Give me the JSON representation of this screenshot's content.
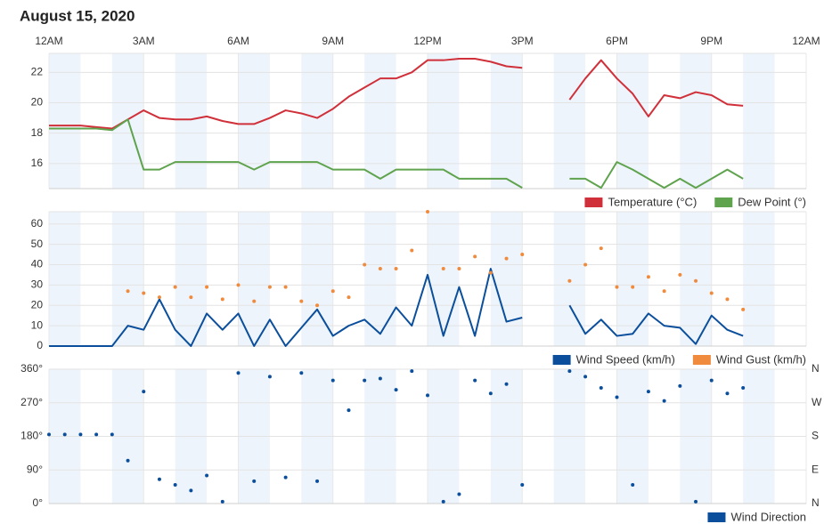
{
  "title": "August 15, 2020",
  "chart_data": [
    {
      "type": "line",
      "xlim": [
        0,
        24
      ],
      "xticks": [
        {
          "value": 0,
          "label": "12AM"
        },
        {
          "value": 3,
          "label": "3AM"
        },
        {
          "value": 6,
          "label": "6AM"
        },
        {
          "value": 9,
          "label": "9AM"
        },
        {
          "value": 12,
          "label": "12PM"
        },
        {
          "value": 15,
          "label": "3PM"
        },
        {
          "value": 18,
          "label": "6PM"
        },
        {
          "value": 21,
          "label": "9PM"
        },
        {
          "value": 24,
          "label": "12AM"
        }
      ],
      "ylim": [
        14.35,
        23.25
      ],
      "yticks": [
        16,
        18,
        20,
        22
      ],
      "grid": true,
      "x": [
        0,
        0.5,
        1,
        1.5,
        2,
        2.5,
        3,
        3.5,
        4,
        4.5,
        5,
        5.5,
        6,
        6.5,
        7,
        7.5,
        8,
        8.5,
        9,
        9.5,
        10,
        10.5,
        11,
        11.5,
        12,
        12.5,
        13,
        13.5,
        14,
        14.5,
        15,
        15.75,
        16.5,
        17,
        17.5,
        18,
        18.5,
        19,
        19.5,
        20,
        20.5,
        21,
        21.5,
        22
      ],
      "series": [
        {
          "name": "Temperature (°C)",
          "color": "#d0303a",
          "style": "line",
          "values": [
            18.5,
            18.5,
            18.5,
            18.4,
            18.3,
            18.9,
            19.5,
            19.0,
            18.9,
            18.9,
            19.1,
            18.8,
            18.6,
            18.6,
            19.0,
            19.5,
            19.3,
            19.0,
            19.6,
            20.4,
            21.0,
            21.6,
            21.6,
            22.0,
            22.8,
            22.8,
            22.9,
            22.9,
            22.7,
            22.4,
            22.3,
            null,
            20.2,
            21.6,
            22.8,
            21.6,
            20.6,
            19.1,
            20.5,
            20.3,
            20.7,
            20.5,
            19.9,
            19.8
          ]
        },
        {
          "name": "Dew Point (°)",
          "color": "#5fa34e",
          "style": "line",
          "values": [
            18.3,
            18.3,
            18.3,
            18.3,
            18.2,
            18.9,
            15.6,
            15.6,
            16.1,
            16.1,
            16.1,
            16.1,
            16.1,
            15.6,
            16.1,
            16.1,
            16.1,
            16.1,
            15.6,
            15.6,
            15.6,
            15.0,
            15.6,
            15.6,
            15.6,
            15.6,
            15.0,
            15.0,
            15.0,
            15.0,
            14.4,
            null,
            15.0,
            15.0,
            14.4,
            16.1,
            15.6,
            15.0,
            14.4,
            15.0,
            14.4,
            15.0,
            15.6,
            15.0
          ]
        }
      ]
    },
    {
      "type": "line",
      "xlim": [
        0,
        24
      ],
      "ylim": [
        0,
        66
      ],
      "yticks": [
        0,
        10,
        20,
        30,
        40,
        50,
        60
      ],
      "grid": true,
      "x": [
        0,
        0.5,
        1,
        1.5,
        2,
        2.5,
        3,
        3.5,
        4,
        4.5,
        5,
        5.5,
        6,
        6.5,
        7,
        7.5,
        8,
        8.5,
        9,
        9.5,
        10,
        10.5,
        11,
        11.5,
        12,
        12.5,
        13,
        13.5,
        14,
        14.5,
        15,
        15.75,
        16.5,
        17,
        17.5,
        18,
        18.5,
        19,
        19.5,
        20,
        20.5,
        21,
        21.5,
        22
      ],
      "series": [
        {
          "name": "Wind Speed (km/h)",
          "color": "#0b4f9c",
          "style": "line",
          "values": [
            0,
            0,
            0,
            0,
            0,
            10,
            8,
            23,
            8,
            0,
            16,
            8,
            16,
            0,
            13,
            0,
            9,
            18,
            5,
            10,
            13,
            6,
            19,
            10,
            35,
            5,
            29,
            5,
            38,
            12,
            14,
            null,
            20,
            6,
            13,
            5,
            6,
            16,
            10,
            9,
            1,
            15,
            8,
            5
          ]
        },
        {
          "name": "Wind Gust (km/h)",
          "color": "#f08a3c",
          "style": "markers",
          "values": [
            null,
            null,
            null,
            null,
            null,
            27,
            26,
            24,
            29,
            24,
            29,
            23,
            30,
            22,
            29,
            29,
            22,
            20,
            27,
            24,
            40,
            38,
            38,
            47,
            66,
            38,
            38,
            44,
            36,
            43,
            45,
            null,
            32,
            40,
            48,
            29,
            29,
            34,
            27,
            35,
            32,
            26,
            23,
            18
          ]
        }
      ]
    },
    {
      "type": "scatter",
      "xlim": [
        0,
        24
      ],
      "ylim": [
        0,
        360
      ],
      "yticks": [
        {
          "value": 0,
          "label": "0°"
        },
        {
          "value": 90,
          "label": "90°"
        },
        {
          "value": 180,
          "label": "180°"
        },
        {
          "value": 270,
          "label": "270°"
        },
        {
          "value": 360,
          "label": "360°"
        }
      ],
      "y2lim": [
        0,
        360
      ],
      "y2ticks": [
        {
          "value": 0,
          "label": "N"
        },
        {
          "value": 90,
          "label": "E"
        },
        {
          "value": 180,
          "label": "S"
        },
        {
          "value": 270,
          "label": "W"
        },
        {
          "value": 360,
          "label": "N"
        }
      ],
      "grid": true,
      "x": [
        0,
        0.5,
        1,
        1.5,
        2,
        2.5,
        3,
        3.5,
        4,
        4.5,
        5,
        5.5,
        6,
        6.5,
        7,
        7.5,
        8,
        8.5,
        9,
        9.5,
        10,
        10.5,
        11,
        11.5,
        12,
        12.5,
        13,
        13.5,
        14,
        14.5,
        15,
        15.75,
        16.5,
        17,
        17.5,
        18,
        18.5,
        19,
        19.5,
        20,
        20.5,
        21,
        21.5,
        22
      ],
      "series": [
        {
          "name": "Wind Direction",
          "color": "#0b4f9c",
          "style": "markers",
          "values": [
            185,
            185,
            185,
            185,
            185,
            115,
            300,
            65,
            50,
            35,
            75,
            5,
            350,
            60,
            340,
            70,
            350,
            60,
            330,
            250,
            330,
            335,
            305,
            355,
            290,
            5,
            25,
            330,
            295,
            320,
            50,
            null,
            355,
            340,
            310,
            285,
            50,
            300,
            275,
            315,
            5,
            330,
            295,
            310
          ]
        }
      ]
    }
  ]
}
